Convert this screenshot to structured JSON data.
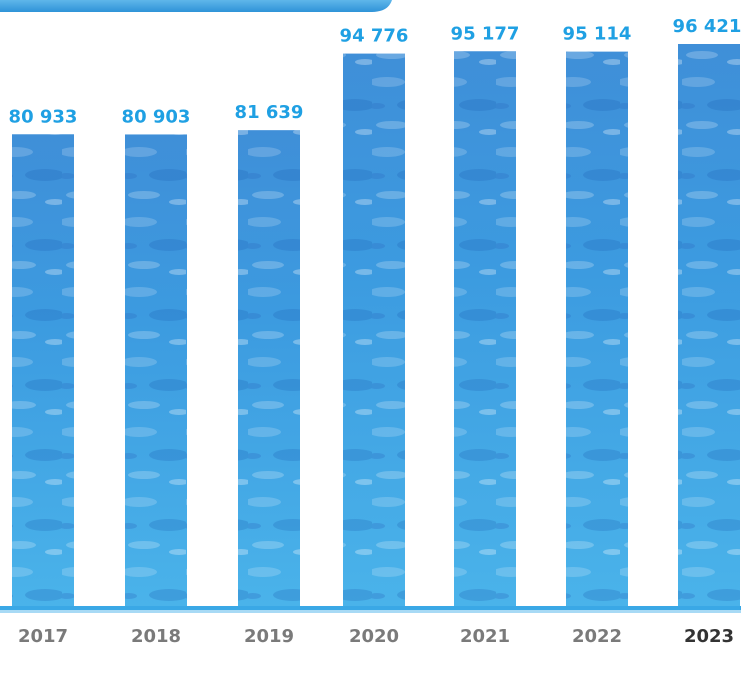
{
  "chart_data": {
    "type": "bar",
    "categories": [
      "2017",
      "2018",
      "2019",
      "2020",
      "2021",
      "2022",
      "2023"
    ],
    "values": [
      80933,
      80903,
      81639,
      94776,
      95177,
      95114,
      96421
    ],
    "value_labels": [
      "80 933",
      "80 903",
      "81 639",
      "94 776",
      "95 177",
      "95 114",
      "96 421"
    ]
  }
}
